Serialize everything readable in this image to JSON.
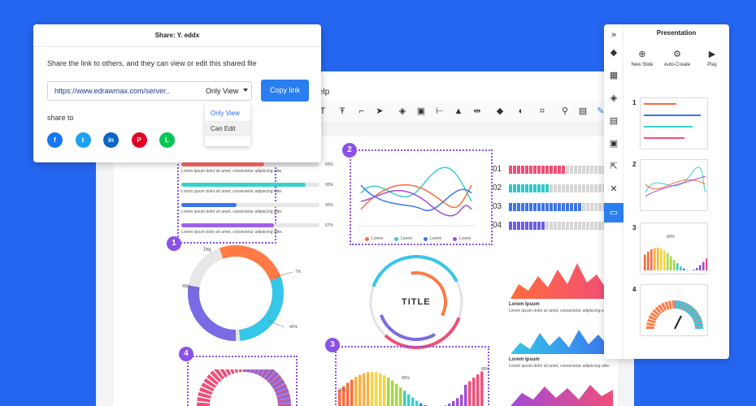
{
  "editor": {
    "menu_help": "elp",
    "toolbar_icons": [
      "text-icon",
      "text-box-icon",
      "connector-icon",
      "pointer-icon",
      "layers-icon",
      "crop-icon",
      "align-icon",
      "warning-icon",
      "flip-icon",
      "fill-icon",
      "line-color-icon",
      "crop2-icon",
      "search-icon",
      "image-icon",
      "pen-icon"
    ]
  },
  "share": {
    "title": "Share: Y. eddx",
    "description": "Share the link to others, and they can view or edit this shared file",
    "url": "https://www.edrawmax.com/server..",
    "permission": "Only View",
    "copy_label": "Copy link",
    "share_to": "share to",
    "options": [
      "Only View",
      "Can Edit"
    ],
    "socials": [
      {
        "name": "facebook",
        "glyph": "f",
        "color": "#1877f2"
      },
      {
        "name": "twitter",
        "glyph": "t",
        "color": "#1da1f2"
      },
      {
        "name": "linkedin",
        "glyph": "in",
        "color": "#0a66c2"
      },
      {
        "name": "pinterest",
        "glyph": "P",
        "color": "#e60023"
      },
      {
        "name": "line",
        "glyph": "L",
        "color": "#06c755"
      }
    ]
  },
  "presentation": {
    "title": "Presentation",
    "actions": [
      {
        "label": "New Slide",
        "icon": "⊕"
      },
      {
        "label": "Auto-Create",
        "icon": "⚙"
      },
      {
        "label": "Play",
        "icon": "▶"
      }
    ],
    "slides": [
      "1",
      "2",
      "3",
      "4"
    ],
    "slide3_label": "80%"
  },
  "canvas": {
    "badges": [
      "1",
      "2",
      "3",
      "4"
    ],
    "lorem_bar": "Lorem ipsum dolor sit amet, consectetur adipiscing elite.",
    "progress": [
      {
        "pct": "60%",
        "value": 0.6,
        "color": "#ff6b6b"
      },
      {
        "pct": "90%",
        "value": 0.9,
        "color": "#3ad0c9"
      },
      {
        "pct": "40%",
        "value": 0.4,
        "color": "#3b74f0"
      },
      {
        "pct": "67%",
        "value": 0.67,
        "color": "#a061e8"
      }
    ],
    "donut_labels": [
      "12%",
      "45%",
      "7%",
      "45%"
    ],
    "title_gauge": "TITLE",
    "chart_legend": [
      "Lorem",
      "Lorem",
      "Lorem",
      "Lorem"
    ],
    "bars_right": [
      {
        "label": "01",
        "value": 0.55,
        "color": "#ef4f76"
      },
      {
        "label": "02",
        "value": 0.4,
        "color": "#2fc8c6"
      },
      {
        "label": "03",
        "value": 0.7,
        "color": "#3d73f2"
      },
      {
        "label": "04",
        "value": 0.35,
        "color": "#6a5de8"
      }
    ],
    "lorem_title": "Lorem Ipsum",
    "lorem_text": "Lorem ipsum dolor sit amet, consectetur adipiscing elite.",
    "bottom_pcts": [
      "20%",
      "80%",
      "80%"
    ]
  }
}
